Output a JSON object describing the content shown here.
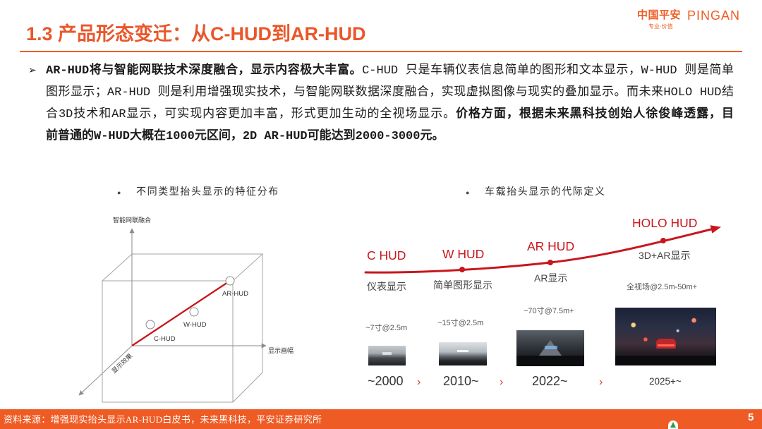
{
  "slide": {
    "title": "1.3 产品形态变迁：从C-HUD到AR-HUD",
    "page_number": "5"
  },
  "logo": {
    "cn": "中国平安",
    "en": "PINGAN",
    "tagline": "专业·价值"
  },
  "bullet": {
    "marker": "➢",
    "lines": [
      [
        "AR-HUD将与智能网联技术深度融合，显示内容极大丰富。",
        "C-HUD 只是车辆仪表信息简单的图形和文本显示，W-HUD 则是简单"
      ],
      [
        "图形显示；AR-HUD 则是利用增强现实技术，与智能网联数据深度融合，实现虚拟图像与现实的叠加显示。而未来HOLO HUD结"
      ],
      [
        "合3D技术和AR显示，可实现内容更加丰富，形式更加生动的全视场显示。",
        "价格方面，根据未来黑科技创始人徐俊峰透露，目"
      ],
      [
        "前普通的W-HUD大概在1000元区间，2D AR-HUD可能达到2000-3000元。"
      ]
    ]
  },
  "left_figure": {
    "caption_marker": "●",
    "caption": "不同类型抬头显示的特征分布",
    "axes": {
      "vertical": "智能网联融合",
      "horizontal": "显示画幅",
      "depth": "显示效果"
    },
    "points": [
      {
        "label": "C-HUD"
      },
      {
        "label": "W-HUD"
      },
      {
        "label": "AR-HUD"
      }
    ]
  },
  "right_figure": {
    "caption_marker": "●",
    "caption": "车载抬头显示的代际定义",
    "separator": "›",
    "generations": [
      {
        "name": "C HUD",
        "display": "仪表显示",
        "spec": "~7寸@2.5m",
        "year": "~2000"
      },
      {
        "name": "W HUD",
        "display": "简单图形显示",
        "spec": "~15寸@2.5m",
        "year": "2010~"
      },
      {
        "name": "AR HUD",
        "display": "AR显示",
        "spec": "~70寸@7.5m+",
        "year": "2022~"
      },
      {
        "name": "HOLO HUD",
        "display": "3D+AR显示",
        "spec": "全视场@2.5m-50m+",
        "year": "2025+~"
      }
    ]
  },
  "footer": {
    "source": "资料来源：增强现实抬头显示AR-HUD白皮书，未来黑科技，平安证券研究所"
  },
  "colors": {
    "brand_orange": "#EF5B24",
    "title_orange": "#E9572A",
    "hud_red": "#C8161D"
  }
}
